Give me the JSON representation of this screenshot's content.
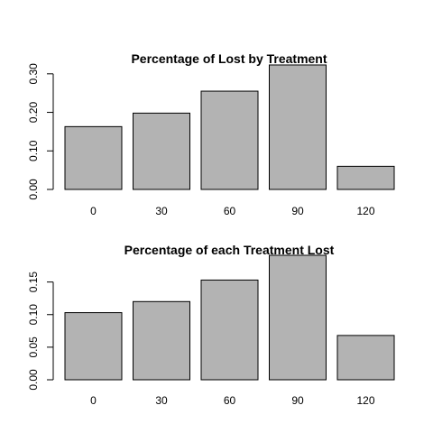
{
  "chart_data": [
    {
      "type": "bar",
      "title": "Percentage of Lost by Treatment",
      "xlabel": "",
      "ylabel": "",
      "categories": [
        "0",
        "30",
        "60",
        "90",
        "120"
      ],
      "values": [
        0.163,
        0.198,
        0.255,
        0.323,
        0.06
      ],
      "ylim": [
        0,
        0.323
      ],
      "yticks": [
        0.0,
        0.1,
        0.2,
        0.3
      ],
      "ytick_labels": [
        "0.00",
        "0.10",
        "0.20",
        "0.30"
      ],
      "bar_color": "#b3b3b3",
      "grid": false
    },
    {
      "type": "bar",
      "title": "Percentage of each Treatment Lost",
      "xlabel": "",
      "ylabel": "",
      "categories": [
        "0",
        "30",
        "60",
        "90",
        "120"
      ],
      "values": [
        0.103,
        0.12,
        0.153,
        0.191,
        0.068
      ],
      "ylim": [
        0,
        0.191
      ],
      "yticks": [
        0.0,
        0.05,
        0.1,
        0.15
      ],
      "ytick_labels": [
        "0.00",
        "0.05",
        "0.10",
        "0.15"
      ],
      "bar_color": "#b3b3b3",
      "grid": false
    }
  ]
}
